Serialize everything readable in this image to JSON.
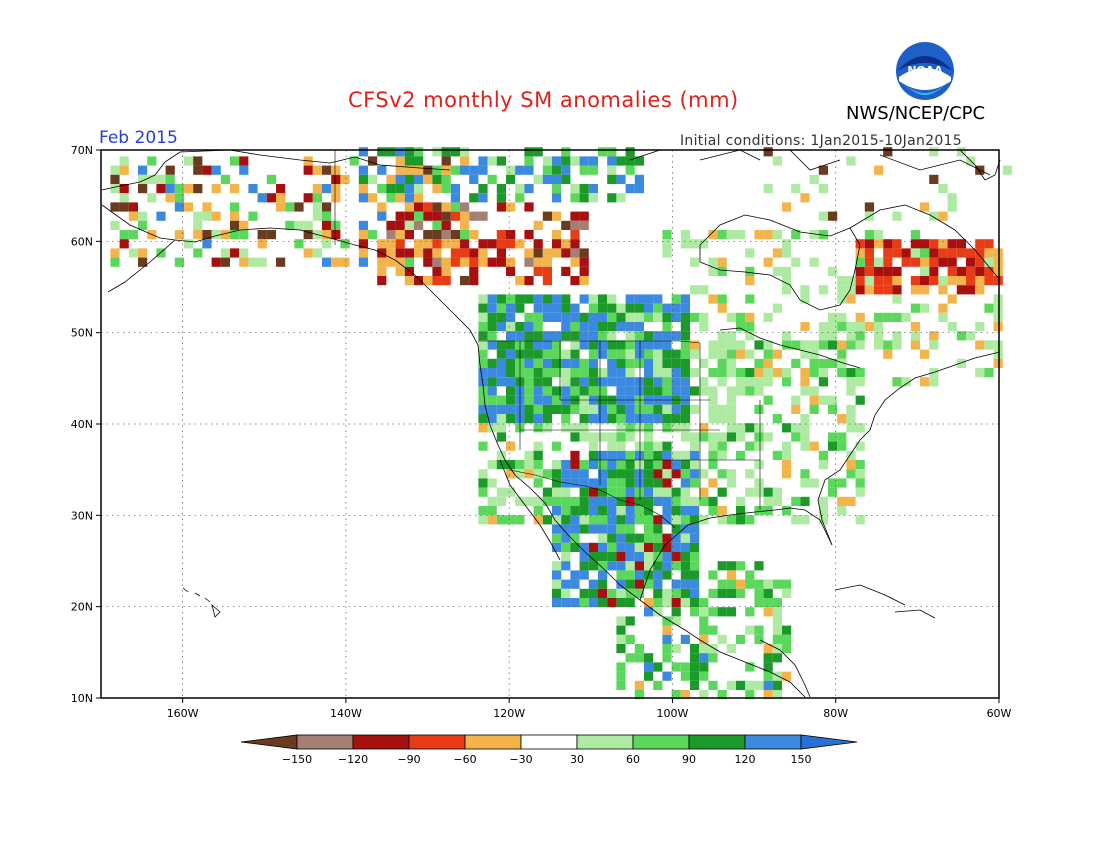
{
  "header": {
    "title": "CFSv2 monthly SM anomalies (mm)",
    "month": "Feb 2015",
    "initial_conditions": "Initial conditions: 1Jan2015-10Jan2015",
    "agency": "NWS/NCEP/CPC",
    "logo_text": "NOAA"
  },
  "map": {
    "region": "North America",
    "lat_range": [
      10,
      70
    ],
    "lon_range": [
      -170,
      -60
    ],
    "lat_ticks": [
      "70N",
      "60N",
      "50N",
      "40N",
      "30N",
      "20N",
      "10N"
    ],
    "lon_ticks": [
      "160W",
      "140W",
      "120W",
      "100W",
      "80W",
      "60W"
    ],
    "gridlines": "dotted"
  },
  "legend": {
    "unit": "mm",
    "ticks": [
      "−150",
      "−120",
      "−90",
      "−60",
      "−30",
      "30",
      "60",
      "90",
      "120",
      "150"
    ],
    "colors": [
      "#6b3b20",
      "#a57e74",
      "#a80f0f",
      "#e83c16",
      "#f3b44b",
      "#ffffff",
      "#aeeaa2",
      "#5bd85c",
      "#1b9a2a",
      "#3b8ae0",
      "#2870d8"
    ]
  }
}
